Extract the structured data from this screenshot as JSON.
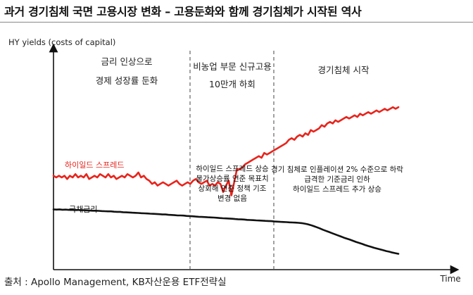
{
  "title": "과거 경기침체 국면 고용시장 변화 – 고용둔화와 함께 경기침체가 시작된 역사",
  "source": "출처 : Apollo Management, KB자산운용 ETF전략실",
  "chart_data": {
    "type": "line",
    "ylabel": "HY yields (costs of capital)",
    "xlabel": "Time",
    "phases": [
      {
        "label_lines": [
          "금리 인상으로",
          "경제 성장률 둔화"
        ],
        "note_lines": []
      },
      {
        "label_lines": [
          "비농업 부문 신규고용",
          "10만개 하회"
        ],
        "note_lines": [
          "하이일드 스프레드 상승",
          "물가상승률 연준 목표치",
          "상회해  연준 정책 기조",
          "변경 없음"
        ]
      },
      {
        "label_lines": [
          "경기침체 시작"
        ],
        "note_lines": [
          "경기 침체로 인플레이션 2% 수준으로 하락",
          "급격한 기준금리 인하",
          "하이일드 스프레드 추가 상승"
        ]
      }
    ],
    "series": [
      {
        "name": "하이일드 스프레드",
        "color": "#e8241c",
        "values": [
          48,
          47,
          48,
          47,
          48,
          46,
          48,
          47,
          49,
          47,
          48,
          47,
          49,
          46,
          47,
          48,
          47,
          49,
          48,
          47,
          49,
          47,
          48,
          46,
          47,
          48,
          47,
          49,
          48,
          47,
          48,
          50,
          47,
          48,
          46,
          45,
          43,
          44,
          42,
          43,
          44,
          43,
          42,
          43,
          44,
          45,
          43,
          42,
          43,
          44,
          43,
          45,
          46,
          44,
          43,
          44,
          45,
          42,
          43,
          42,
          44,
          43,
          38,
          42,
          45,
          36,
          44,
          52,
          52,
          53,
          55,
          56,
          57,
          58,
          59,
          60,
          59,
          62,
          61,
          62,
          63,
          64,
          65,
          66,
          67,
          68,
          70,
          71,
          70,
          72,
          73,
          72,
          74,
          73,
          76,
          75,
          76,
          77,
          79,
          78,
          80,
          81,
          80,
          82,
          81,
          82,
          83,
          84,
          83,
          84,
          85,
          84,
          86,
          85,
          86,
          87,
          86,
          87,
          88,
          87,
          88,
          89,
          88,
          89,
          90,
          89,
          90
        ]
      },
      {
        "name": "국채금리",
        "color": "#111111",
        "values": [
          27.4,
          27.3,
          27.4,
          27.2,
          27.3,
          27.1,
          27.2,
          27.0,
          27.1,
          26.9,
          26.9,
          26.8,
          26.7,
          26.6,
          26.6,
          26.5,
          26.4,
          26.3,
          26.2,
          26.2,
          26.0,
          25.9,
          25.9,
          25.7,
          25.6,
          25.5,
          25.4,
          25.3,
          25.2,
          25.1,
          25.0,
          24.9,
          24.8,
          24.7,
          24.6,
          24.5,
          24.3,
          24.3,
          24.1,
          24.0,
          23.9,
          23.7,
          23.7,
          23.6,
          23.4,
          23.3,
          23.2,
          23.0,
          22.9,
          22.8,
          22.7,
          22.6,
          22.5,
          22.4,
          22.3,
          22.1,
          22.0,
          21.9,
          21.8,
          21.7,
          21.5,
          21.4,
          21.3,
          21.2,
          21.0,
          20.9,
          20.8,
          20.7,
          20.6,
          20.5,
          20.4,
          20.3,
          20.2,
          20.0,
          19.9,
          19.8,
          19.7,
          19.6,
          19.5,
          19.4,
          19.3,
          19.2,
          19.0,
          18.7,
          18.3,
          17.8,
          17.2,
          16.5,
          15.8,
          15.0,
          14.3,
          13.6,
          12.9,
          12.2,
          11.5,
          10.8,
          10.1,
          9.5,
          8.9,
          8.2,
          7.5,
          6.9,
          6.3,
          5.6,
          5.0,
          4.5,
          3.9,
          3.4,
          2.9,
          2.4,
          1.9,
          1.5,
          1.0,
          0.6,
          0.2
        ]
      }
    ],
    "ylim": [
      0,
      100
    ],
    "grid": false,
    "legend": "inline labels on lines"
  }
}
